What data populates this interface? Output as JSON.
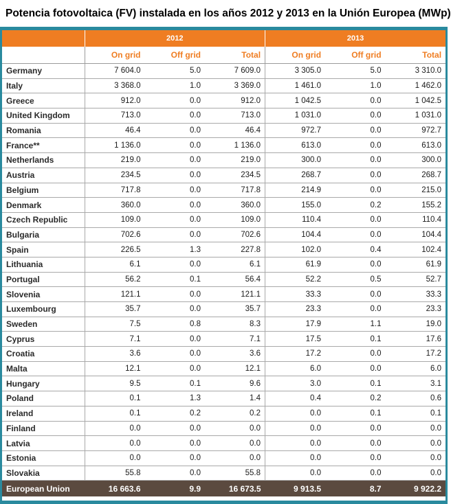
{
  "title": "Potencia fotovoltaica (FV) instalada en los años 2012 y 2013 en la Unión Europea (MWp)",
  "colors": {
    "header_bg": "#ef7d22",
    "subheader_text": "#ef7d22",
    "total_bg": "#5b4a3f",
    "frame": "#2a8a9e"
  },
  "chart_data": {
    "type": "table",
    "title": "Potencia fotovoltaica (FV) instalada en los años 2012 y 2013 en la Unión Europea (MWp)",
    "year_headers": [
      "2012",
      "2013"
    ],
    "columns": [
      "On grid",
      "Off grid",
      "Total",
      "On grid",
      "Off grid",
      "Total"
    ],
    "rows": [
      {
        "country": "Germany",
        "values": [
          "7 604.0",
          "5.0",
          "7 609.0",
          "3 305.0",
          "5.0",
          "3 310.0"
        ]
      },
      {
        "country": "Italy",
        "values": [
          "3 368.0",
          "1.0",
          "3 369.0",
          "1 461.0",
          "1.0",
          "1 462.0"
        ]
      },
      {
        "country": "Greece",
        "values": [
          "912.0",
          "0.0",
          "912.0",
          "1 042.5",
          "0.0",
          "1 042.5"
        ]
      },
      {
        "country": "United Kingdom",
        "values": [
          "713.0",
          "0.0",
          "713.0",
          "1 031.0",
          "0.0",
          "1 031.0"
        ]
      },
      {
        "country": "Romania",
        "values": [
          "46.4",
          "0.0",
          "46.4",
          "972.7",
          "0.0",
          "972.7"
        ]
      },
      {
        "country": "France**",
        "values": [
          "1 136.0",
          "0.0",
          "1 136.0",
          "613.0",
          "0.0",
          "613.0"
        ]
      },
      {
        "country": "Netherlands",
        "values": [
          "219.0",
          "0.0",
          "219.0",
          "300.0",
          "0.0",
          "300.0"
        ]
      },
      {
        "country": "Austria",
        "values": [
          "234.5",
          "0.0",
          "234.5",
          "268.7",
          "0.0",
          "268.7"
        ]
      },
      {
        "country": "Belgium",
        "values": [
          "717.8",
          "0.0",
          "717.8",
          "214.9",
          "0.0",
          "215.0"
        ]
      },
      {
        "country": "Denmark",
        "values": [
          "360.0",
          "0.0",
          "360.0",
          "155.0",
          "0.2",
          "155.2"
        ]
      },
      {
        "country": "Czech Republic",
        "values": [
          "109.0",
          "0.0",
          "109.0",
          "110.4",
          "0.0",
          "110.4"
        ]
      },
      {
        "country": "Bulgaria",
        "values": [
          "702.6",
          "0.0",
          "702.6",
          "104.4",
          "0.0",
          "104.4"
        ]
      },
      {
        "country": "Spain",
        "values": [
          "226.5",
          "1.3",
          "227.8",
          "102.0",
          "0.4",
          "102.4"
        ]
      },
      {
        "country": "Lithuania",
        "values": [
          "6.1",
          "0.0",
          "6.1",
          "61.9",
          "0.0",
          "61.9"
        ]
      },
      {
        "country": "Portugal",
        "values": [
          "56.2",
          "0.1",
          "56.4",
          "52.2",
          "0.5",
          "52.7"
        ]
      },
      {
        "country": "Slovenia",
        "values": [
          "121.1",
          "0.0",
          "121.1",
          "33.3",
          "0.0",
          "33.3"
        ]
      },
      {
        "country": "Luxembourg",
        "values": [
          "35.7",
          "0.0",
          "35.7",
          "23.3",
          "0.0",
          "23.3"
        ]
      },
      {
        "country": "Sweden",
        "values": [
          "7.5",
          "0.8",
          "8.3",
          "17.9",
          "1.1",
          "19.0"
        ]
      },
      {
        "country": "Cyprus",
        "values": [
          "7.1",
          "0.0",
          "7.1",
          "17.5",
          "0.1",
          "17.6"
        ]
      },
      {
        "country": "Croatia",
        "values": [
          "3.6",
          "0.0",
          "3.6",
          "17.2",
          "0.0",
          "17.2"
        ]
      },
      {
        "country": "Malta",
        "values": [
          "12.1",
          "0.0",
          "12.1",
          "6.0",
          "0.0",
          "6.0"
        ]
      },
      {
        "country": "Hungary",
        "values": [
          "9.5",
          "0.1",
          "9.6",
          "3.0",
          "0.1",
          "3.1"
        ]
      },
      {
        "country": "Poland",
        "values": [
          "0.1",
          "1.3",
          "1.4",
          "0.4",
          "0.2",
          "0.6"
        ]
      },
      {
        "country": "Ireland",
        "values": [
          "0.1",
          "0.2",
          "0.2",
          "0.0",
          "0.1",
          "0.1"
        ]
      },
      {
        "country": "Finland",
        "values": [
          "0.0",
          "0.0",
          "0.0",
          "0.0",
          "0.0",
          "0.0"
        ]
      },
      {
        "country": "Latvia",
        "values": [
          "0.0",
          "0.0",
          "0.0",
          "0.0",
          "0.0",
          "0.0"
        ]
      },
      {
        "country": "Estonia",
        "values": [
          "0.0",
          "0.0",
          "0.0",
          "0.0",
          "0.0",
          "0.0"
        ]
      },
      {
        "country": "Slovakia",
        "values": [
          "55.8",
          "0.0",
          "55.8",
          "0.0",
          "0.0",
          "0.0"
        ]
      }
    ],
    "total": {
      "country": "European Union",
      "values": [
        "16 663.6",
        "9.9",
        "16 673.5",
        "9 913.5",
        "8.7",
        "9 922.2"
      ]
    }
  }
}
